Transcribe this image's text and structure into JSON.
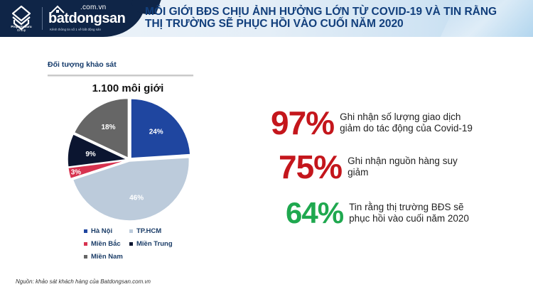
{
  "header": {
    "brand_primary": "PropertyGuru",
    "brand_primary_sub": "Group",
    "brand_secondary_domain": ".com.vn",
    "brand_secondary_name": "batdongsan",
    "brand_secondary_tagline": "Kênh thông tin số 1 về bất động sản",
    "title_line1": "MÔI GIỚI BĐS CHỊU ẢNH HƯỞNG LỚN TỪ COVID-19 VÀ TIN RẰNG",
    "title_line2": "THỊ TRƯỜNG SẼ PHỤC HỒI VÀO CUỐI NĂM 2020"
  },
  "survey": {
    "section_label": "Đối tượng khảo sát",
    "respondents": "1.100 môi giới"
  },
  "legend": [
    {
      "label": "Hà Nội",
      "color": "#1f46a0"
    },
    {
      "label": "TP.HCM",
      "color": "#bccbdb"
    },
    {
      "label": "Miền Bắc",
      "color": "#d7324f"
    },
    {
      "label": "Miền Trung",
      "color": "#0b1530"
    },
    {
      "label": "Miền Nam",
      "color": "#666666"
    }
  ],
  "chart_data": {
    "type": "pie",
    "title": "1.100 môi giới",
    "subtitle": "Đối tượng khảo sát",
    "categories": [
      "Hà Nội",
      "TP.HCM",
      "Miền Bắc",
      "Miền Trung",
      "Miền Nam"
    ],
    "values": [
      24,
      46,
      3,
      9,
      18
    ],
    "labels": [
      "24%",
      "46%",
      "3%",
      "9%",
      "18%"
    ],
    "colors": [
      "#1f46a0",
      "#bccbdb",
      "#d7324f",
      "#0b1530",
      "#666666"
    ],
    "start_angle": "12 o'clock, clockwise",
    "legend_position": "bottom"
  },
  "stats": [
    {
      "value": "97%",
      "color": "#c4161c",
      "text_line1": "Ghi nhận số lượng giao dịch",
      "text_line2": "giảm do tác động của Covid-19"
    },
    {
      "value": "75%",
      "color": "#c4161c",
      "text_line1": "Ghi nhận nguồn hàng suy",
      "text_line2": "giảm"
    },
    {
      "value": "64%",
      "color": "#1fa84f",
      "text_line1": "Tin rằng thị trường BĐS sẽ",
      "text_line2": "phục hồi vào cuối năm 2020"
    }
  ],
  "source": "Nguồn: khảo sát khách hàng của Batdongsan.com.vn"
}
